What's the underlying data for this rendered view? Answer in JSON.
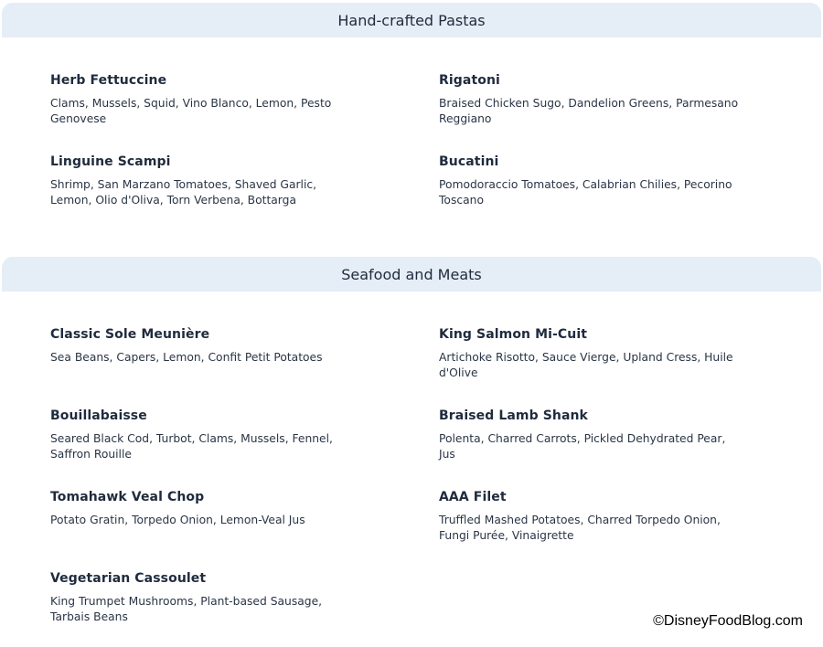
{
  "sections": [
    {
      "title": "Hand-crafted Pastas",
      "items": [
        {
          "name": "Herb Fettuccine",
          "desc": "Clams, Mussels, Squid, Vino Blanco, Lemon, Pesto Genovese"
        },
        {
          "name": "Rigatoni",
          "desc": "Braised Chicken Sugo, Dandelion Greens, Parmesano Reggiano"
        },
        {
          "name": "Linguine Scampi",
          "desc": "Shrimp, San Marzano Tomatoes, Shaved Garlic, Lemon, Olio d'Oliva, Torn Verbena, Bottarga"
        },
        {
          "name": "Bucatini",
          "desc": "Pomodoraccio Tomatoes, Calabrian Chilies, Pecorino Toscano"
        }
      ]
    },
    {
      "title": "Seafood and Meats",
      "items": [
        {
          "name": "Classic Sole Meunière",
          "desc": "Sea Beans, Capers, Lemon, Confit Petit Potatoes"
        },
        {
          "name": "King Salmon Mi-Cuit",
          "desc": "Artichoke Risotto, Sauce Vierge, Upland Cress, Huile d'Olive"
        },
        {
          "name": "Bouillabaisse",
          "desc": "Seared Black Cod, Turbot, Clams, Mussels, Fennel, Saffron Rouille"
        },
        {
          "name": "Braised Lamb Shank",
          "desc": "Polenta, Charred Carrots, Pickled Dehydrated Pear, Jus"
        },
        {
          "name": "Tomahawk Veal Chop",
          "desc": "Potato Gratin, Torpedo Onion, Lemon-Veal Jus"
        },
        {
          "name": "AAA Filet",
          "desc": "Truffled Mashed Potatoes, Charred Torpedo Onion, Fungi Purée, Vinaigrette"
        },
        {
          "name": "Vegetarian Cassoulet",
          "desc": "King Trumpet Mushrooms, Plant-based Sausage, Tarbais Beans"
        }
      ]
    }
  ],
  "watermark": "©DisneyFoodBlog.com",
  "colors": {
    "header_bg": "#e5edf6",
    "text": "#1f2b3d"
  }
}
